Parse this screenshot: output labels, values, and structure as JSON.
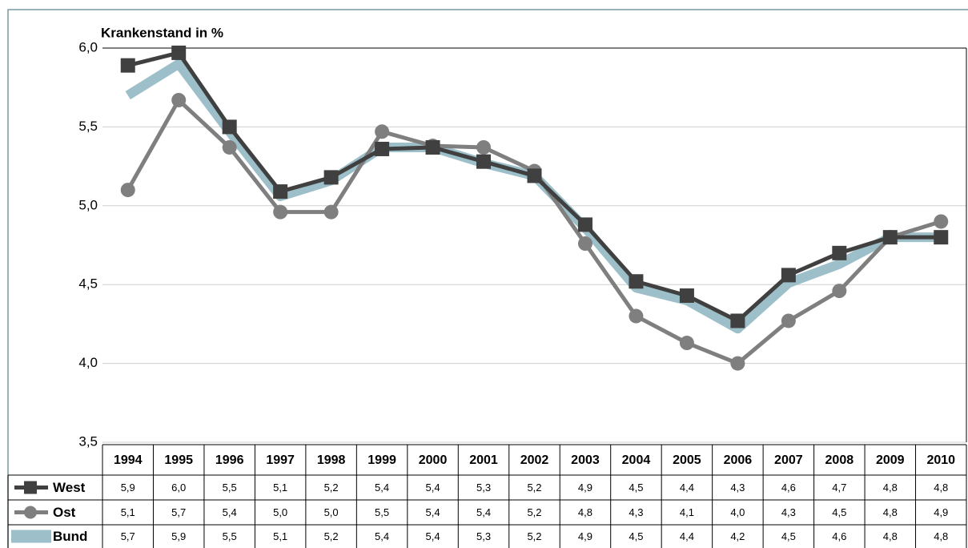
{
  "chart_data": {
    "type": "line",
    "y_label": "Krankenstand in %",
    "categories": [
      "1994",
      "1995",
      "1996",
      "1997",
      "1998",
      "1999",
      "2000",
      "2001",
      "2002",
      "2003",
      "2004",
      "2005",
      "2006",
      "2007",
      "2008",
      "2009",
      "2010"
    ],
    "ylim": [
      3.5,
      6.0
    ],
    "yticks": [
      {
        "value": 3.5,
        "label": "3,5"
      },
      {
        "value": 4.0,
        "label": "4,0"
      },
      {
        "value": 4.5,
        "label": "4,5"
      },
      {
        "value": 5.0,
        "label": "5,0"
      },
      {
        "value": 5.5,
        "label": "5,5"
      },
      {
        "value": 6.0,
        "label": "6,0"
      }
    ],
    "grid": true,
    "series": [
      {
        "name": "Bund",
        "color": "#9dbfc9",
        "values": [
          5.7,
          5.9,
          5.47,
          5.06,
          5.16,
          5.37,
          5.37,
          5.27,
          5.19,
          4.86,
          4.48,
          4.4,
          4.22,
          4.51,
          4.63,
          4.8,
          4.8
        ],
        "value_labels": [
          "5,7",
          "5,9",
          "5,5",
          "5,1",
          "5,2",
          "5,4",
          "5,4",
          "5,3",
          "5,2",
          "4,9",
          "4,5",
          "4,4",
          "4,2",
          "4,5",
          "4,6",
          "4,8",
          "4,8"
        ]
      },
      {
        "name": "Ost",
        "color": "#7f7f7f",
        "values": [
          5.1,
          5.67,
          5.37,
          4.96,
          4.96,
          5.47,
          5.38,
          5.37,
          5.22,
          4.76,
          4.3,
          4.13,
          4.0,
          4.27,
          4.46,
          4.8,
          4.9
        ],
        "value_labels": [
          "5,1",
          "5,7",
          "5,4",
          "5,0",
          "5,0",
          "5,5",
          "5,4",
          "5,4",
          "5,2",
          "4,8",
          "4,3",
          "4,1",
          "4,0",
          "4,3",
          "4,5",
          "4,8",
          "4,9"
        ]
      },
      {
        "name": "West",
        "color": "#404040",
        "values": [
          5.89,
          5.97,
          5.5,
          5.09,
          5.18,
          5.36,
          5.37,
          5.28,
          5.19,
          4.88,
          4.52,
          4.43,
          4.27,
          4.56,
          4.7,
          4.8,
          4.8
        ],
        "value_labels": [
          "5,9",
          "6,0",
          "5,5",
          "5,1",
          "5,2",
          "5,4",
          "5,4",
          "5,3",
          "5,2",
          "4,9",
          "4,5",
          "4,4",
          "4,3",
          "4,6",
          "4,7",
          "4,8",
          "4,8"
        ]
      }
    ]
  }
}
